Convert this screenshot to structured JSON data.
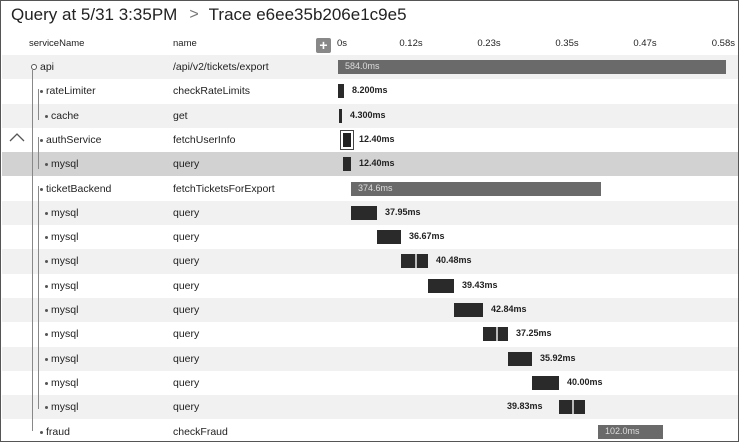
{
  "header": {
    "query_label": "Query at 5/31 3:35PM",
    "separator": ">",
    "trace_label": "Trace e6ee35b206e1c9e5"
  },
  "columns": {
    "service": "serviceName",
    "name": "name",
    "add": "+"
  },
  "timeline": {
    "ticks": [
      "0s",
      "0.12s",
      "0.23s",
      "0.35s",
      "0.47s",
      "0.58s"
    ],
    "max_ms": 584
  },
  "spans": [
    {
      "service": "api",
      "name": "/api/v2/tickets/export",
      "duration": "584.0ms",
      "start_ms": 0,
      "dur_ms": 584
    },
    {
      "service": "rateLimiter",
      "name": "checkRateLimits",
      "duration": "8.200ms",
      "start_ms": 0,
      "dur_ms": 8.2
    },
    {
      "service": "cache",
      "name": "get",
      "duration": "4.300ms",
      "start_ms": 0.5,
      "dur_ms": 4.3
    },
    {
      "service": "authService",
      "name": "fetchUserInfo",
      "duration": "12.40ms",
      "start_ms": 7,
      "dur_ms": 12.4
    },
    {
      "service": "mysql",
      "name": "query",
      "duration": "12.40ms",
      "start_ms": 7,
      "dur_ms": 12.4
    },
    {
      "service": "ticketBackend",
      "name": "fetchTicketsForExport",
      "duration": "374.6ms",
      "start_ms": 20,
      "dur_ms": 374.6
    },
    {
      "service": "mysql",
      "name": "query",
      "duration": "37.95ms",
      "start_ms": 20,
      "dur_ms": 37.95
    },
    {
      "service": "mysql",
      "name": "query",
      "duration": "36.67ms",
      "start_ms": 58,
      "dur_ms": 36.67
    },
    {
      "service": "mysql",
      "name": "query",
      "duration": "40.48ms",
      "start_ms": 95,
      "dur_ms": 40.48
    },
    {
      "service": "mysql",
      "name": "query",
      "duration": "39.43ms",
      "start_ms": 136,
      "dur_ms": 39.43
    },
    {
      "service": "mysql",
      "name": "query",
      "duration": "42.84ms",
      "start_ms": 175,
      "dur_ms": 42.84
    },
    {
      "service": "mysql",
      "name": "query",
      "duration": "37.25ms",
      "start_ms": 218,
      "dur_ms": 37.25
    },
    {
      "service": "mysql",
      "name": "query",
      "duration": "35.92ms",
      "start_ms": 255,
      "dur_ms": 35.92
    },
    {
      "service": "mysql",
      "name": "query",
      "duration": "40.00ms",
      "start_ms": 291,
      "dur_ms": 40.0
    },
    {
      "service": "mysql",
      "name": "query",
      "duration": "39.83ms",
      "start_ms": 331,
      "dur_ms": 39.83
    },
    {
      "service": "fraud",
      "name": "checkFraud",
      "duration": "102.0ms",
      "start_ms": 389,
      "dur_ms": 102.0
    }
  ],
  "colors": {
    "bar": "#2a2a2a",
    "bar_long": "#6a6a6a",
    "selected_row": "#d2d2d2",
    "alt_row": "#f1f1f1"
  }
}
